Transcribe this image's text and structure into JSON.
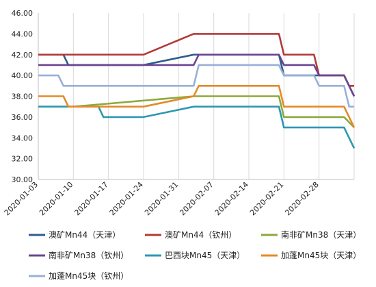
{
  "chart_data": {
    "type": "line",
    "title": "",
    "xlabel": "",
    "ylabel": "",
    "x_start": "2020-01-03",
    "x_end": "2020-03-06",
    "x_ticks": [
      "2020-01-03",
      "2020-01-10",
      "2020-01-17",
      "2020-01-24",
      "2020-01-31",
      "2020-02-07",
      "2020-02-14",
      "2020-02-21",
      "2020-02-28"
    ],
    "y_ticks": [
      "30.00",
      "32.00",
      "34.00",
      "36.00",
      "38.00",
      "40.00",
      "42.00",
      "44.00",
      "46.00"
    ],
    "ylim": [
      30,
      46
    ],
    "grid": {
      "vertical": true,
      "horizontal": false
    },
    "legend_position": "bottom",
    "series": [
      {
        "name": "澳矿Mn44（天津）",
        "color": "#2e5d8e",
        "points": [
          [
            "2020-01-03",
            42
          ],
          [
            "2020-01-08",
            42
          ],
          [
            "2020-01-09",
            41
          ],
          [
            "2020-01-24",
            41
          ],
          [
            "2020-02-03",
            42
          ],
          [
            "2020-02-20",
            42
          ],
          [
            "2020-02-21",
            40
          ],
          [
            "2020-03-04",
            40
          ],
          [
            "2020-03-06",
            38
          ]
        ]
      },
      {
        "name": "澳矿Mn44（钦州）",
        "color": "#b23a37",
        "points": [
          [
            "2020-01-03",
            42
          ],
          [
            "2020-01-24",
            42
          ],
          [
            "2020-02-03",
            44
          ],
          [
            "2020-02-20",
            44
          ],
          [
            "2020-02-21",
            42
          ],
          [
            "2020-02-27",
            42
          ],
          [
            "2020-02-28",
            40
          ],
          [
            "2020-03-04",
            40
          ],
          [
            "2020-03-05",
            39
          ],
          [
            "2020-03-06",
            39
          ]
        ]
      },
      {
        "name": "南非矿Mn38（天津）",
        "color": "#8aaa3a",
        "points": [
          [
            "2020-01-03",
            37
          ],
          [
            "2020-01-10",
            37
          ],
          [
            "2020-02-03",
            38
          ],
          [
            "2020-02-20",
            38
          ],
          [
            "2020-02-21",
            36
          ],
          [
            "2020-03-04",
            36
          ],
          [
            "2020-03-06",
            35
          ]
        ]
      },
      {
        "name": "南非矿Mn38（钦州）",
        "color": "#6b4592",
        "points": [
          [
            "2020-01-03",
            41
          ],
          [
            "2020-02-03",
            41
          ],
          [
            "2020-02-04",
            42
          ],
          [
            "2020-02-20",
            42
          ],
          [
            "2020-02-21",
            41
          ],
          [
            "2020-02-27",
            41
          ],
          [
            "2020-02-28",
            40
          ],
          [
            "2020-03-04",
            40
          ],
          [
            "2020-03-06",
            38
          ]
        ]
      },
      {
        "name": "巴西块Mn45（天津）",
        "color": "#2c98b0",
        "points": [
          [
            "2020-01-03",
            37
          ],
          [
            "2020-01-15",
            37
          ],
          [
            "2020-01-16",
            36
          ],
          [
            "2020-01-24",
            36
          ],
          [
            "2020-02-03",
            37
          ],
          [
            "2020-02-20",
            37
          ],
          [
            "2020-02-21",
            35
          ],
          [
            "2020-03-04",
            35
          ],
          [
            "2020-03-06",
            33
          ]
        ]
      },
      {
        "name": "加蓬Mn45块（天津）",
        "color": "#e48a2a",
        "points": [
          [
            "2020-01-03",
            38
          ],
          [
            "2020-01-08",
            38
          ],
          [
            "2020-01-09",
            37
          ],
          [
            "2020-01-24",
            37
          ],
          [
            "2020-02-03",
            38
          ],
          [
            "2020-02-04",
            39
          ],
          [
            "2020-02-20",
            39
          ],
          [
            "2020-02-21",
            37
          ],
          [
            "2020-03-04",
            37
          ],
          [
            "2020-03-06",
            35
          ]
        ]
      },
      {
        "name": "加蓬Mn45块（钦州）",
        "color": "#98b0d8",
        "points": [
          [
            "2020-01-03",
            40
          ],
          [
            "2020-01-07",
            40
          ],
          [
            "2020-01-08",
            39
          ],
          [
            "2020-02-03",
            39
          ],
          [
            "2020-02-04",
            41
          ],
          [
            "2020-02-20",
            41
          ],
          [
            "2020-02-21",
            40
          ],
          [
            "2020-02-27",
            40
          ],
          [
            "2020-02-28",
            39
          ],
          [
            "2020-03-04",
            39
          ],
          [
            "2020-03-05",
            37
          ],
          [
            "2020-03-06",
            37
          ]
        ]
      }
    ]
  }
}
